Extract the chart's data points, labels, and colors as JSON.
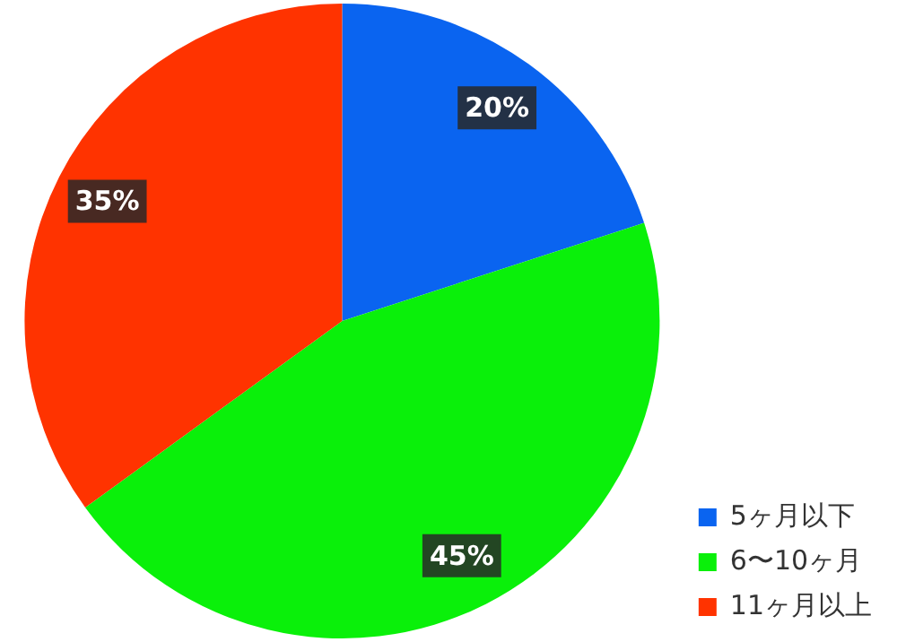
{
  "chart_data": {
    "type": "pie",
    "categories": [
      "5ヶ月以下",
      "6〜10ヶ月",
      "11ヶ月以上"
    ],
    "values": [
      20,
      45,
      35
    ],
    "value_labels": [
      "20%",
      "45%",
      "35%"
    ],
    "colors": [
      "#0a64f0",
      "#0af00a",
      "#ff3300"
    ],
    "legend": "bottom right"
  }
}
